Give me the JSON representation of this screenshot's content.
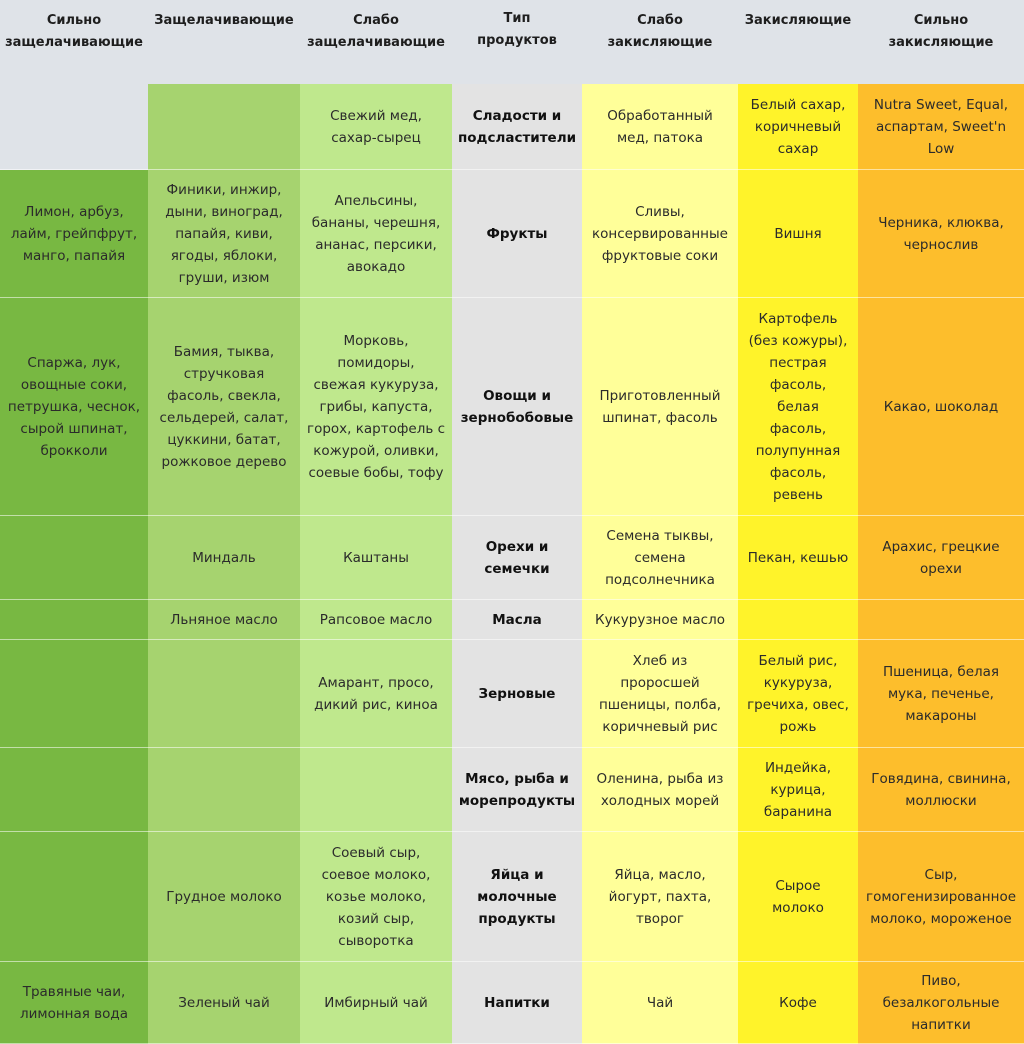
{
  "headers": [
    "Сильно\nзащелачивающие",
    "Защелачивающие",
    "Слабо\nзащелачивающие",
    "Тип\nпродуктов",
    "Слабо\nзакисляющие",
    "Закисляющие",
    "Сильно\nзакисляющие"
  ],
  "rows": [
    {
      "type": "Сладости и\nподсластители",
      "cells": [
        "",
        "",
        "Свежий мед,\nсахар-сырец",
        "Обработанный\nмед, патока",
        "Белый сахар,\nкоричневый\nсахар",
        "Nutra Sweet, Equal,\nаспартам, Sweet'n\nLow"
      ]
    },
    {
      "type": "Фрукты",
      "cells": [
        "Лимон, арбуз,\nлайм, грейпфрут,\nманго, папайя",
        "Финики, инжир,\nдыни, виноград,\nпапайя, киви,\nягоды, яблоки,\nгруши, изюм",
        "Апельсины,\nбананы, черешня,\nананас, персики,\nавокадо",
        "Сливы,\nконсервированные\nфруктовые соки",
        "Вишня",
        "Черника, клюква,\nчернослив"
      ]
    },
    {
      "type": "Овощи и\nзернобобовые",
      "cells": [
        "Спаржа, лук,\nовощные соки,\nпетрушка, чеснок,\nсырой шпинат,\nброкколи",
        "Бамия, тыква,\nстручковая\nфасоль, свекла,\nсельдерей, салат,\nцуккини, батат,\nрожковое дерево",
        "Морковь,\nпомидоры,\nсвежая кукуруза,\nгрибы, капуста,\nгорох, картофель с\nкожурой, оливки,\nсоевые бобы, тофу",
        "Приготовленный\nшпинат, фасоль",
        "Картофель\n(без кожуры),\nпестрая\nфасоль,\nбелая\nфасоль,\nполупунная\nфасоль,\nревень",
        "Какао, шоколад"
      ]
    },
    {
      "type": "Орехи и\nсемечки",
      "cells": [
        "",
        "Миндаль",
        "Каштаны",
        "Семена тыквы,\nсемена\nподсолнечника",
        "Пекан, кешью",
        "Арахис, грецкие\nорехи"
      ]
    },
    {
      "type": "Масла",
      "cells": [
        "",
        "Льняное масло",
        "Рапсовое масло",
        "Кукурузное масло",
        "",
        ""
      ]
    },
    {
      "type": "Зерновые",
      "cells": [
        "",
        "",
        "Амарант, просо,\nдикий рис, киноа",
        "Хлеб из\nпроросшей\nпшеницы, полба,\nкоричневый рис",
        "Белый рис,\nкукуруза,\nгречиха, овес,\nрожь",
        "Пшеница, белая\nмука, печенье,\nмакароны"
      ]
    },
    {
      "type": "Мясо, рыба и\nморепродукты",
      "cells": [
        "",
        "",
        "",
        "Оленина, рыба из\nхолодных морей",
        "Индейка,\nкурица,\nбаранина",
        "Говядина, свинина,\nмоллюски"
      ]
    },
    {
      "type": "Яйца и\nмолочные\nпродукты",
      "cells": [
        "",
        "Грудное молоко",
        "Соевый сыр,\nсоевое молоко,\nкозье молоко,\nкозий сыр,\nсыворотка",
        "Яйца, масло,\nйогурт, пахта,\nтворог",
        "Сырое\nмолоко",
        "Сыр,\nгомогенизированное\nмолоко, мороженое"
      ]
    },
    {
      "type": "Напитки",
      "cells": [
        "Травяные чаи,\nлимонная вода",
        "Зеленый чай",
        "Имбирный чай",
        "Чай",
        "Кофе",
        "Пиво,\nбезалкогольные\nнапитки"
      ]
    }
  ]
}
